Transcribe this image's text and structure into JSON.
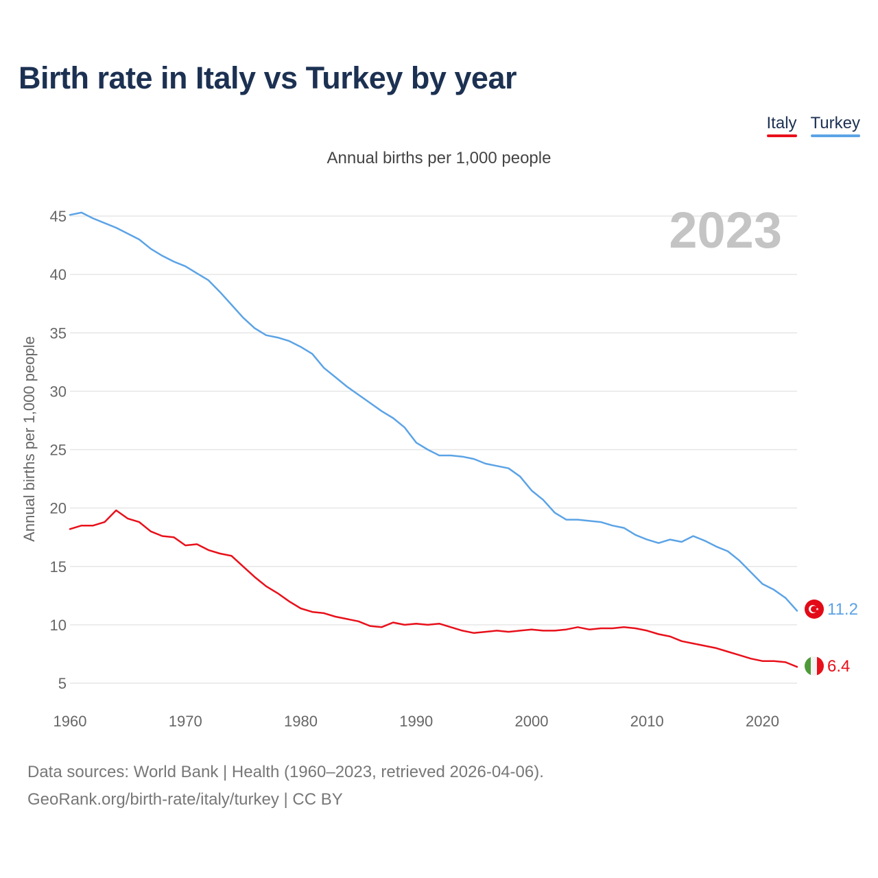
{
  "title": "Birth rate in Italy vs Turkey by year",
  "subtitle": "Annual births per 1,000 people",
  "legend": [
    {
      "label": "Italy",
      "color": "#e8101a"
    },
    {
      "label": "Turkey",
      "color": "#5ba3e6"
    }
  ],
  "year_display": "2023",
  "end_labels": {
    "italy": "6.4",
    "turkey": "11.2"
  },
  "flags": {
    "italy": "italy-flag-icon",
    "turkey": "turkey-flag-icon"
  },
  "footer": {
    "sources": "Data sources: World Bank | Health (1960–2023, retrieved 2026-04-06).",
    "credit": "GeoRank.org/birth-rate/italy/turkey | CC BY"
  },
  "chart_data": {
    "type": "line",
    "title": "Birth rate in Italy vs Turkey by year",
    "subtitle": "Annual births per 1,000 people",
    "xlabel": "",
    "ylabel": "Annual births per 1,000 people",
    "xlim": [
      1960,
      2023
    ],
    "ylim": [
      5,
      45
    ],
    "xticks": [
      1960,
      1970,
      1980,
      1990,
      2000,
      2010,
      2020
    ],
    "yticks": [
      5,
      10,
      15,
      20,
      25,
      30,
      35,
      40,
      45
    ],
    "grid": true,
    "legend_position": "top-right",
    "x": [
      1960,
      1961,
      1962,
      1963,
      1964,
      1965,
      1966,
      1967,
      1968,
      1969,
      1970,
      1971,
      1972,
      1973,
      1974,
      1975,
      1976,
      1977,
      1978,
      1979,
      1980,
      1981,
      1982,
      1983,
      1984,
      1985,
      1986,
      1987,
      1988,
      1989,
      1990,
      1991,
      1992,
      1993,
      1994,
      1995,
      1996,
      1997,
      1998,
      1999,
      2000,
      2001,
      2002,
      2003,
      2004,
      2005,
      2006,
      2007,
      2008,
      2009,
      2010,
      2011,
      2012,
      2013,
      2014,
      2015,
      2016,
      2017,
      2018,
      2019,
      2020,
      2021,
      2022,
      2023
    ],
    "series": [
      {
        "name": "Italy",
        "color": "#e8101a",
        "values": [
          18.2,
          18.5,
          18.5,
          18.8,
          19.8,
          19.1,
          18.8,
          18.0,
          17.6,
          17.5,
          16.8,
          16.9,
          16.4,
          16.1,
          15.9,
          15.0,
          14.1,
          13.3,
          12.7,
          12.0,
          11.4,
          11.1,
          11.0,
          10.7,
          10.5,
          10.3,
          9.9,
          9.8,
          10.2,
          10.0,
          10.1,
          10.0,
          10.1,
          9.8,
          9.5,
          9.3,
          9.4,
          9.5,
          9.4,
          9.5,
          9.6,
          9.5,
          9.5,
          9.6,
          9.8,
          9.6,
          9.7,
          9.7,
          9.8,
          9.7,
          9.5,
          9.2,
          9.0,
          8.6,
          8.4,
          8.2,
          8.0,
          7.7,
          7.4,
          7.1,
          6.9,
          6.9,
          6.8,
          6.4
        ]
      },
      {
        "name": "Turkey",
        "color": "#5ba3e6",
        "values": [
          45.1,
          45.3,
          44.8,
          44.4,
          44.0,
          43.5,
          43.0,
          42.2,
          41.6,
          41.1,
          40.7,
          40.1,
          39.5,
          38.5,
          37.4,
          36.3,
          35.4,
          34.8,
          34.6,
          34.3,
          33.8,
          33.2,
          32.0,
          31.2,
          30.4,
          29.7,
          29.0,
          28.3,
          27.7,
          26.9,
          25.6,
          25.0,
          24.5,
          24.5,
          24.4,
          24.2,
          23.8,
          23.6,
          23.4,
          22.7,
          21.5,
          20.7,
          19.6,
          19.0,
          19.0,
          18.9,
          18.8,
          18.5,
          18.3,
          17.7,
          17.3,
          17.0,
          17.3,
          17.1,
          17.6,
          17.2,
          16.7,
          16.3,
          15.5,
          14.5,
          13.5,
          13.0,
          12.3,
          11.2
        ]
      }
    ]
  }
}
